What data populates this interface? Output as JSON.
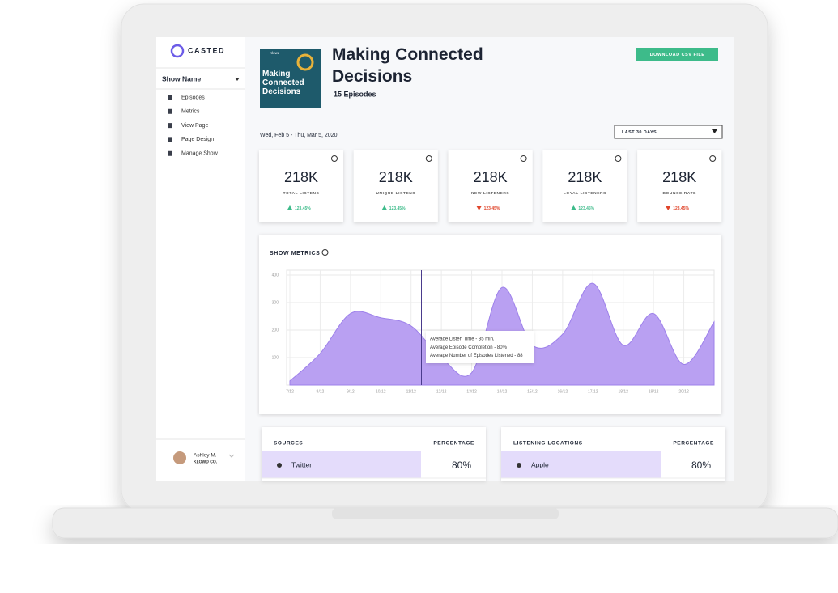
{
  "sidebar": {
    "logo": "CASTED",
    "show_selector": "Show Name",
    "menu": [
      "Episodes",
      "Metrics",
      "View Page",
      "Page Design",
      "Manage Show"
    ],
    "user": {
      "name": "Ashley M.",
      "company": "KLOWD CO."
    }
  },
  "header": {
    "cover": {
      "brand": "Klowd",
      "title": "Making Connected Decisions"
    },
    "title": "Making Connected Decisions",
    "subtitle": "15 Episodes",
    "button": "DOWNLOAD CSV FILE",
    "date_range": "Wed, Feb 5 - Thu, Mar 5, 2020",
    "period": "LAST 30 DAYS"
  },
  "stats": [
    {
      "value": "218K",
      "label": "TOTAL LISTENS",
      "change": "123.45%",
      "trend": "up"
    },
    {
      "value": "218K",
      "label": "UNIQUE LISTENS",
      "change": "123.45%",
      "trend": "up"
    },
    {
      "value": "218K",
      "label": "NEW LISTENERS",
      "change": "123.45%",
      "trend": "down"
    },
    {
      "value": "218K",
      "label": "LOYAL LISTENERS",
      "change": "123.45%",
      "trend": "up"
    },
    {
      "value": "218K",
      "label": "BOUNCE RATE",
      "change": "123.45%",
      "trend": "down"
    }
  ],
  "chart": {
    "type": "area",
    "title": "SHOW METRICS",
    "categories": [
      "7/12",
      "8/12",
      "9/12",
      "10/12",
      "11/12",
      "12/12",
      "13/12",
      "14/12",
      "15/12",
      "16/12",
      "17/12",
      "18/12",
      "19/12",
      "20/12",
      null
    ],
    "values": [
      15,
      115,
      260,
      245,
      215,
      100,
      45,
      355,
      145,
      185,
      370,
      145,
      260,
      75,
      230
    ],
    "color": "#b9a0f2",
    "ylim": [
      0,
      400
    ],
    "yticks": [
      100,
      200,
      300,
      400
    ],
    "grid": true,
    "tooltip": [
      "Average Listen Time - 35 min.",
      "Average Episode Completion - 80%",
      "Average Number of Episodes Listened - 88"
    ]
  },
  "tables": [
    {
      "columns": [
        "SOURCES",
        "PERCENTAGE"
      ],
      "rows": [
        [
          "Twitter",
          "80%"
        ]
      ]
    },
    {
      "columns": [
        "LISTENING LOCATIONS",
        "PERCENTAGE"
      ],
      "rows": [
        [
          "Apple",
          "80%"
        ]
      ]
    }
  ]
}
